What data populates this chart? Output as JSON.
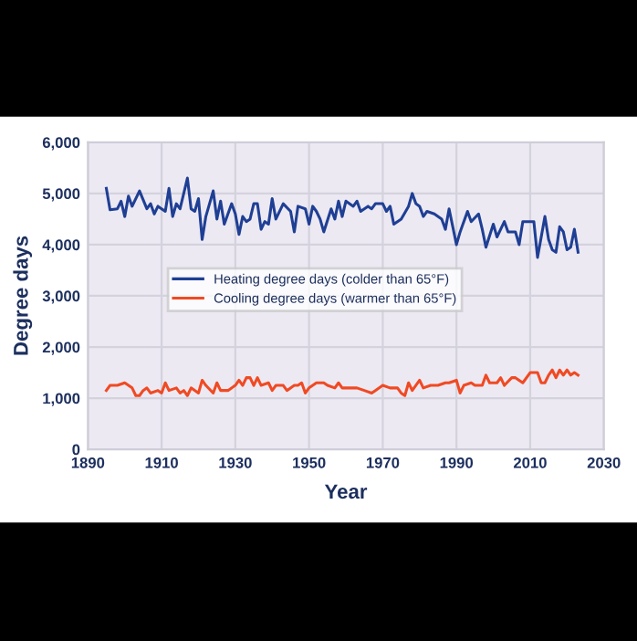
{
  "chart_data": {
    "type": "line",
    "xlabel": "Year",
    "ylabel": "Degree days",
    "xlim": [
      1890,
      2030
    ],
    "xticks": [
      1890,
      1910,
      1930,
      1950,
      1970,
      1990,
      2010,
      2030
    ],
    "ylim": [
      0,
      6000
    ],
    "yticks": [
      {
        "value": 0,
        "label": "0"
      },
      {
        "value": 1000,
        "label": "1,000"
      },
      {
        "value": 2000,
        "label": "2,000"
      },
      {
        "value": 3000,
        "label": "3,000"
      },
      {
        "value": 4000,
        "label": "4,000"
      },
      {
        "value": 5000,
        "label": "5,000"
      },
      {
        "value": 6000,
        "label": "6,000"
      }
    ],
    "grid": true,
    "legend": "center",
    "marker": "none",
    "line_style": "solid",
    "series": [
      {
        "name": "Heating degree days (colder than 65°F)",
        "color": "#1f3f94",
        "x": [
          1895,
          1896,
          1898,
          1899,
          1900,
          1901,
          1902,
          1904,
          1906,
          1907,
          1908,
          1909,
          1911,
          1912,
          1913,
          1914,
          1915,
          1917,
          1918,
          1919,
          1920,
          1921,
          1922,
          1924,
          1925,
          1926,
          1927,
          1929,
          1930,
          1931,
          1932,
          1933,
          1934,
          1935,
          1936,
          1937,
          1938,
          1939,
          1940,
          1941,
          1943,
          1945,
          1946,
          1947,
          1949,
          1950,
          1951,
          1952,
          1953,
          1954,
          1956,
          1957,
          1958,
          1959,
          1960,
          1962,
          1963,
          1964,
          1966,
          1967,
          1968,
          1970,
          1971,
          1972,
          1973,
          1975,
          1977,
          1978,
          1979,
          1980,
          1981,
          1982,
          1984,
          1986,
          1987,
          1988,
          1990,
          1991,
          1993,
          1994,
          1996,
          1997,
          1998,
          2000,
          2001,
          2003,
          2004,
          2006,
          2007,
          2008,
          2011,
          2012,
          2014,
          2015,
          2016,
          2017,
          2018,
          2019,
          2020,
          2021,
          2022,
          2023
        ],
        "values": [
          5100,
          4680,
          4700,
          4850,
          4550,
          4950,
          4750,
          5050,
          4700,
          4800,
          4600,
          4750,
          4650,
          5100,
          4550,
          4800,
          4700,
          5300,
          4700,
          4650,
          4900,
          4100,
          4550,
          5050,
          4500,
          4850,
          4400,
          4800,
          4600,
          4200,
          4550,
          4450,
          4500,
          4800,
          4800,
          4300,
          4450,
          4400,
          4900,
          4500,
          4800,
          4650,
          4250,
          4750,
          4700,
          4400,
          4750,
          4650,
          4500,
          4250,
          4700,
          4500,
          4850,
          4550,
          4850,
          4750,
          4850,
          4650,
          4750,
          4700,
          4800,
          4800,
          4650,
          4750,
          4400,
          4500,
          4750,
          5000,
          4800,
          4750,
          4550,
          4650,
          4600,
          4500,
          4300,
          4700,
          4000,
          4250,
          4650,
          4450,
          4600,
          4300,
          3950,
          4400,
          4150,
          4450,
          4250,
          4250,
          4000,
          4450,
          4450,
          3750,
          4550,
          4100,
          3900,
          3850,
          4350,
          4250,
          3900,
          3950,
          4300,
          3850
        ]
      },
      {
        "name": "Cooling degree days (warmer than 65°F)",
        "color": "#f04a23",
        "x": [
          1895,
          1896,
          1898,
          1900,
          1901,
          1902,
          1903,
          1904,
          1905,
          1906,
          1907,
          1909,
          1910,
          1911,
          1912,
          1914,
          1915,
          1916,
          1917,
          1918,
          1920,
          1921,
          1922,
          1924,
          1925,
          1926,
          1928,
          1930,
          1931,
          1932,
          1933,
          1934,
          1935,
          1936,
          1937,
          1939,
          1940,
          1941,
          1943,
          1944,
          1946,
          1947,
          1948,
          1949,
          1950,
          1952,
          1954,
          1955,
          1957,
          1958,
          1959,
          1961,
          1963,
          1965,
          1967,
          1968,
          1970,
          1972,
          1974,
          1975,
          1976,
          1977,
          1978,
          1980,
          1981,
          1983,
          1985,
          1987,
          1988,
          1990,
          1991,
          1992,
          1994,
          1995,
          1997,
          1998,
          1999,
          2001,
          2002,
          2003,
          2005,
          2006,
          2007,
          2008,
          2010,
          2011,
          2012,
          2013,
          2014,
          2015,
          2016,
          2017,
          2018,
          2019,
          2020,
          2021,
          2022,
          2023
        ],
        "values": [
          1150,
          1250,
          1250,
          1300,
          1250,
          1200,
          1050,
          1050,
          1150,
          1200,
          1100,
          1150,
          1100,
          1300,
          1150,
          1200,
          1100,
          1150,
          1050,
          1200,
          1100,
          1350,
          1250,
          1100,
          1300,
          1150,
          1150,
          1250,
          1350,
          1250,
          1400,
          1400,
          1250,
          1400,
          1250,
          1300,
          1150,
          1250,
          1250,
          1150,
          1250,
          1250,
          1300,
          1100,
          1200,
          1300,
          1300,
          1250,
          1200,
          1300,
          1200,
          1200,
          1200,
          1150,
          1100,
          1150,
          1250,
          1200,
          1200,
          1100,
          1050,
          1300,
          1150,
          1350,
          1200,
          1250,
          1250,
          1300,
          1300,
          1350,
          1100,
          1250,
          1300,
          1250,
          1250,
          1450,
          1300,
          1300,
          1400,
          1250,
          1400,
          1400,
          1350,
          1300,
          1500,
          1500,
          1500,
          1300,
          1300,
          1450,
          1550,
          1400,
          1550,
          1450,
          1550,
          1450,
          1500,
          1450
        ]
      }
    ]
  }
}
